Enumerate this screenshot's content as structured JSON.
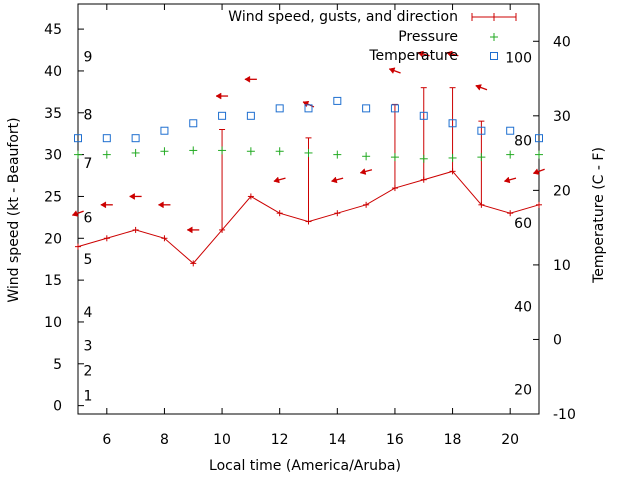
{
  "chart_data": {
    "type": "line",
    "xlabel": "Local time (America/Aruba)",
    "ylabel_left": "Wind speed (kt - Beaufort)",
    "ylabel_right": "Temperature (C - F)",
    "xlim": [
      5,
      21
    ],
    "ylim_left": [
      -1,
      48
    ],
    "ylim_right": [
      -10,
      45
    ],
    "x_ticks": [
      6,
      8,
      10,
      12,
      14,
      16,
      18,
      20
    ],
    "y_ticks_left": [
      0,
      5,
      10,
      15,
      20,
      25,
      30,
      35,
      40,
      45
    ],
    "y_ticks_right": [
      -10,
      0,
      10,
      20,
      30,
      40
    ],
    "beaufort_labels": [
      {
        "label": "1",
        "wind": 1.2
      },
      {
        "label": "2",
        "wind": 4.2
      },
      {
        "label": "3",
        "wind": 7.2
      },
      {
        "label": "4",
        "wind": 11.2
      },
      {
        "label": "5",
        "wind": 17.5
      },
      {
        "label": "6",
        "wind": 22.5
      },
      {
        "label": "7",
        "wind": 29.0
      },
      {
        "label": "8",
        "wind": 34.8
      },
      {
        "label": "9",
        "wind": 41.7
      }
    ],
    "fahrenheit_labels": [
      {
        "label": "20",
        "temp": -6.7
      },
      {
        "label": "40",
        "temp": 4.4
      },
      {
        "label": "60",
        "temp": 15.6
      },
      {
        "label": "80",
        "temp": 26.7
      },
      {
        "label": "100",
        "temp": 37.8
      }
    ],
    "legend": {
      "wind": "Wind speed, gusts, and direction",
      "pressure": "Pressure",
      "temperature": "Temperature"
    },
    "colors": {
      "wind": "#cc0000",
      "pressure": "#22aa22",
      "temperature": "#1f6fd0"
    },
    "hours": [
      5,
      6,
      7,
      8,
      9,
      10,
      11,
      12,
      13,
      14,
      15,
      16,
      17,
      18,
      19,
      20,
      21
    ],
    "wind_speed": [
      19,
      20,
      21,
      20,
      17,
      21,
      25,
      23,
      22,
      23,
      24,
      26,
      27,
      28,
      24,
      23,
      24
    ],
    "wind_gust": [
      null,
      null,
      null,
      null,
      null,
      33,
      null,
      null,
      32,
      null,
      null,
      36,
      38,
      38,
      34,
      null,
      null
    ],
    "direction_marker_y": [
      23,
      24,
      25,
      24,
      21,
      37,
      39,
      27,
      36,
      27,
      28,
      40,
      42,
      42,
      38,
      27,
      28
    ],
    "direction_angle_deg": [
      200,
      180,
      180,
      180,
      180,
      180,
      180,
      195,
      155,
      195,
      195,
      160,
      165,
      165,
      160,
      195,
      200
    ],
    "pressure_marker_y": [
      30,
      30,
      30.2,
      30.4,
      30.5,
      30.5,
      30.4,
      30.4,
      30.2,
      30.0,
      29.8,
      29.7,
      29.5,
      29.6,
      29.7,
      30.0,
      30.0
    ],
    "temperature_c": [
      27,
      27,
      27,
      28,
      29,
      30,
      30,
      31,
      31,
      32,
      31,
      31,
      30,
      29,
      28,
      28,
      27
    ]
  }
}
